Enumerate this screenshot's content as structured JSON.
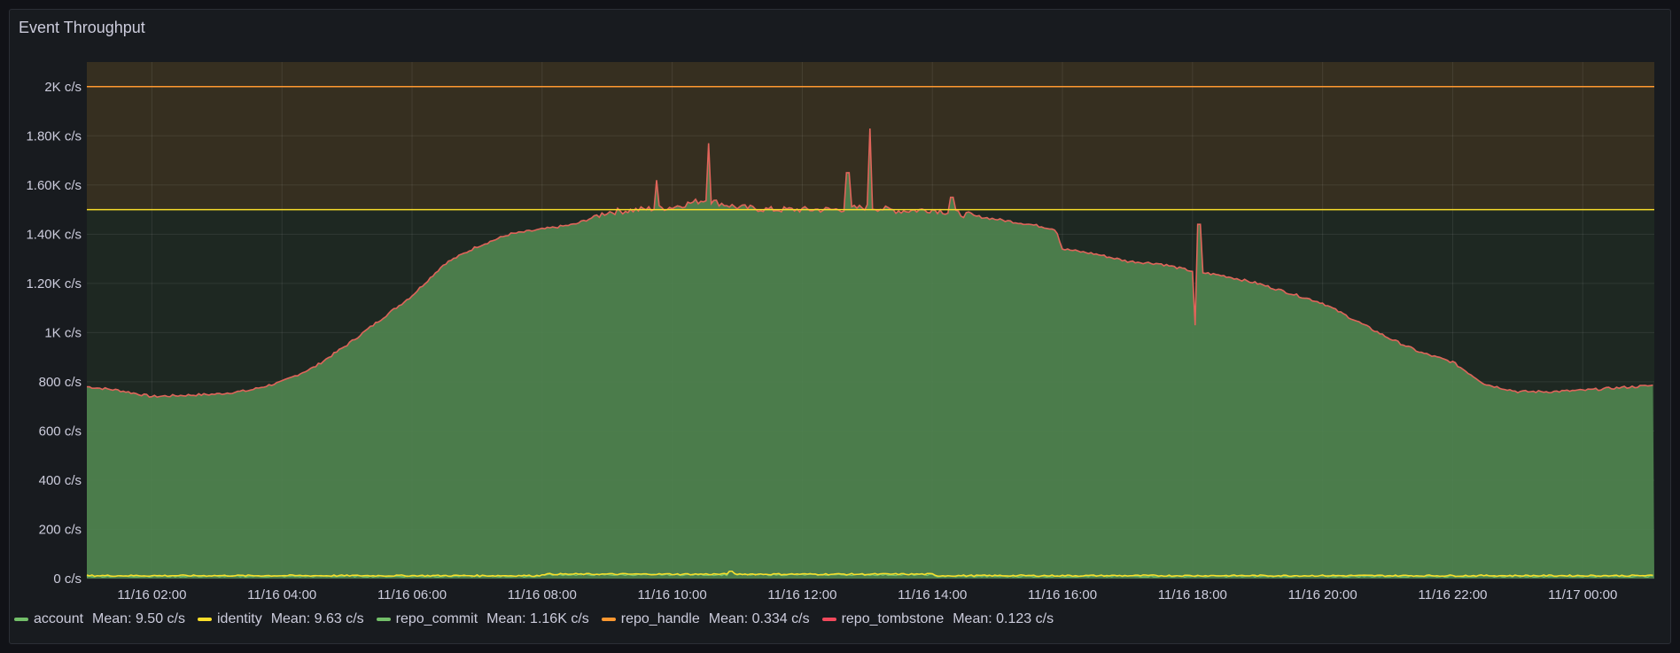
{
  "panel": {
    "title": "Event Throughput"
  },
  "colors": {
    "account": "#73bf69",
    "identity": "#fade2a",
    "repo_commit": "#73bf69",
    "repo_handle": "#ff9830",
    "repo_tombstone": "#f2495c",
    "fill_commit": "#4f834f",
    "threshold_orange": "#ff9830",
    "threshold_yellow": "#fade2a"
  },
  "legend": [
    {
      "name": "account",
      "mean": "Mean: 9.50 c/s",
      "color": "#73bf69"
    },
    {
      "name": "identity",
      "mean": "Mean: 9.63 c/s",
      "color": "#fade2a"
    },
    {
      "name": "repo_commit",
      "mean": "Mean: 1.16K c/s",
      "color": "#73bf69"
    },
    {
      "name": "repo_handle",
      "mean": "Mean: 0.334 c/s",
      "color": "#ff9830"
    },
    {
      "name": "repo_tombstone",
      "mean": "Mean: 0.123 c/s",
      "color": "#f2495c"
    }
  ],
  "chart_data": {
    "type": "area",
    "title": "Event Throughput",
    "unit": "c/s",
    "x_range_hours": [
      1.0,
      25.1
    ],
    "y_range": [
      0,
      2100
    ],
    "y_ticks": [
      {
        "value": 0,
        "label": "0 c/s"
      },
      {
        "value": 200,
        "label": "200 c/s"
      },
      {
        "value": 400,
        "label": "400 c/s"
      },
      {
        "value": 600,
        "label": "600 c/s"
      },
      {
        "value": 800,
        "label": "800 c/s"
      },
      {
        "value": 1000,
        "label": "1K c/s"
      },
      {
        "value": 1200,
        "label": "1.20K c/s"
      },
      {
        "value": 1400,
        "label": "1.40K c/s"
      },
      {
        "value": 1600,
        "label": "1.60K c/s"
      },
      {
        "value": 1800,
        "label": "1.80K c/s"
      },
      {
        "value": 2000,
        "label": "2K c/s"
      }
    ],
    "x_ticks": [
      {
        "hour": 2,
        "label": "11/16 02:00"
      },
      {
        "hour": 4,
        "label": "11/16 04:00"
      },
      {
        "hour": 6,
        "label": "11/16 06:00"
      },
      {
        "hour": 8,
        "label": "11/16 08:00"
      },
      {
        "hour": 10,
        "label": "11/16 10:00"
      },
      {
        "hour": 12,
        "label": "11/16 12:00"
      },
      {
        "hour": 14,
        "label": "11/16 14:00"
      },
      {
        "hour": 16,
        "label": "11/16 16:00"
      },
      {
        "hour": 18,
        "label": "11/16 18:00"
      },
      {
        "hour": 20,
        "label": "11/16 20:00"
      },
      {
        "hour": 22,
        "label": "11/16 22:00"
      },
      {
        "hour": 24,
        "label": "11/17 00:00"
      }
    ],
    "thresholds": [
      {
        "value": 2000,
        "color": "#ff9830"
      },
      {
        "value": 1500,
        "color": "#fade2a"
      }
    ],
    "series": [
      {
        "name": "repo_commit",
        "hours": [
          1.0,
          1.5,
          2.0,
          2.5,
          3.0,
          3.5,
          4.0,
          4.5,
          5.0,
          5.5,
          6.0,
          6.5,
          7.0,
          7.5,
          8.0,
          8.5,
          9.0,
          9.5,
          10.0,
          10.5,
          11.0,
          11.5,
          12.0,
          12.5,
          13.0,
          13.5,
          14.0,
          14.5,
          15.0,
          15.5,
          15.9,
          16.0,
          16.5,
          17.0,
          17.5,
          18.0,
          18.5,
          19.0,
          19.5,
          20.0,
          20.5,
          21.0,
          21.5,
          22.0,
          22.5,
          23.0,
          23.5,
          24.0,
          24.5,
          25.1
        ],
        "values": [
          780,
          765,
          740,
          745,
          750,
          765,
          800,
          860,
          950,
          1050,
          1150,
          1280,
          1350,
          1400,
          1420,
          1440,
          1490,
          1500,
          1510,
          1540,
          1510,
          1500,
          1500,
          1500,
          1510,
          1495,
          1500,
          1480,
          1460,
          1440,
          1420,
          1340,
          1320,
          1290,
          1280,
          1250,
          1230,
          1200,
          1160,
          1120,
          1050,
          980,
          920,
          880,
          790,
          760,
          760,
          765,
          775,
          785
        ],
        "spikes": [
          {
            "hour": 9.75,
            "value": 1620
          },
          {
            "hour": 10.55,
            "value": 1770
          },
          {
            "hour": 12.7,
            "value": 1650
          },
          {
            "hour": 13.05,
            "value": 1830
          },
          {
            "hour": 14.3,
            "value": 1550
          },
          {
            "hour": 18.1,
            "value": 1440
          },
          {
            "hour": 18.05,
            "value": 1030
          }
        ]
      },
      {
        "name": "account",
        "mean": 9.5
      },
      {
        "name": "identity",
        "mean": 9.63
      },
      {
        "name": "repo_handle",
        "mean": 0.334
      },
      {
        "name": "repo_tombstone",
        "mean": 0.123
      }
    ]
  }
}
